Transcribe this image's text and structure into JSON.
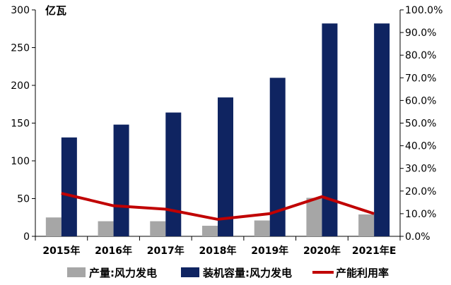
{
  "chart_data": {
    "type": "bar",
    "unit_label": "亿瓦",
    "categories": [
      "2015年",
      "2016年",
      "2017年",
      "2018年",
      "2019年",
      "2020年",
      "2021年E"
    ],
    "series": [
      {
        "name": "产量:风力发电",
        "kind": "bar",
        "axis": "left",
        "color": "#a6a6a6",
        "values": [
          25,
          20,
          20,
          14,
          21,
          51,
          29
        ]
      },
      {
        "name": "装机容量:风力发电",
        "kind": "bar",
        "axis": "left",
        "color": "#0f2461",
        "values": [
          131,
          148,
          164,
          184,
          210,
          282,
          282
        ]
      },
      {
        "name": "产能利用率",
        "kind": "line",
        "axis": "right",
        "color": "#c00000",
        "values": [
          19.0,
          13.5,
          12.0,
          7.5,
          10.0,
          17.5,
          10.0
        ]
      }
    ],
    "y_left": {
      "min": 0,
      "max": 300,
      "ticks": [
        "0",
        "50",
        "100",
        "150",
        "200",
        "250",
        "300"
      ]
    },
    "y_right": {
      "min": 0,
      "max": 100,
      "ticks": [
        "0.0%",
        "10.0%",
        "20.0%",
        "30.0%",
        "40.0%",
        "50.0%",
        "60.0%",
        "70.0%",
        "80.0%",
        "90.0%",
        "100.0%"
      ]
    },
    "grid": false,
    "legend_position": "bottom"
  }
}
